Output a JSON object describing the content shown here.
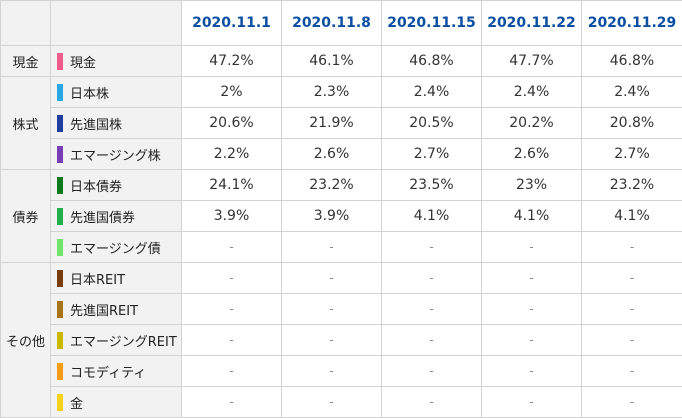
{
  "dates": [
    "2020.11.1",
    "2020.11.8",
    "2020.11.15",
    "2020.11.22",
    "2020.11.29"
  ],
  "groups": [
    {
      "label": "現金",
      "rows": [
        {
          "name": "現金",
          "color": "#f25c8c",
          "values": [
            "47.2%",
            "46.1%",
            "46.8%",
            "47.7%",
            "46.8%"
          ]
        }
      ]
    },
    {
      "label": "株式",
      "rows": [
        {
          "name": "日本株",
          "color": "#2aa7e6",
          "values": [
            "2%",
            "2.3%",
            "2.4%",
            "2.4%",
            "2.4%"
          ]
        },
        {
          "name": "先進国株",
          "color": "#1f3ea0",
          "values": [
            "20.6%",
            "21.9%",
            "20.5%",
            "20.2%",
            "20.8%"
          ]
        },
        {
          "name": "エマージング株",
          "color": "#7a3db8",
          "values": [
            "2.2%",
            "2.6%",
            "2.7%",
            "2.6%",
            "2.7%"
          ]
        }
      ]
    },
    {
      "label": "債券",
      "rows": [
        {
          "name": "日本債券",
          "color": "#0a7a1a",
          "values": [
            "24.1%",
            "23.2%",
            "23.5%",
            "23%",
            "23.2%"
          ]
        },
        {
          "name": "先進国債券",
          "color": "#22b04a",
          "values": [
            "3.9%",
            "3.9%",
            "4.1%",
            "4.1%",
            "4.1%"
          ]
        },
        {
          "name": "エマージング債",
          "color": "#6fe66a",
          "values": [
            "-",
            "-",
            "-",
            "-",
            "-"
          ]
        }
      ]
    },
    {
      "label": "その他",
      "rows": [
        {
          "name": "日本REIT",
          "color": "#7a3b0c",
          "values": [
            "-",
            "-",
            "-",
            "-",
            "-"
          ]
        },
        {
          "name": "先進国REIT",
          "color": "#a8741a",
          "values": [
            "-",
            "-",
            "-",
            "-",
            "-"
          ]
        },
        {
          "name": "エマージングREIT",
          "color": "#c9b800",
          "values": [
            "-",
            "-",
            "-",
            "-",
            "-"
          ]
        },
        {
          "name": "コモディティ",
          "color": "#f59b16",
          "values": [
            "-",
            "-",
            "-",
            "-",
            "-"
          ]
        },
        {
          "name": "金",
          "color": "#f5d21c",
          "values": [
            "-",
            "-",
            "-",
            "-",
            "-"
          ]
        }
      ]
    }
  ]
}
